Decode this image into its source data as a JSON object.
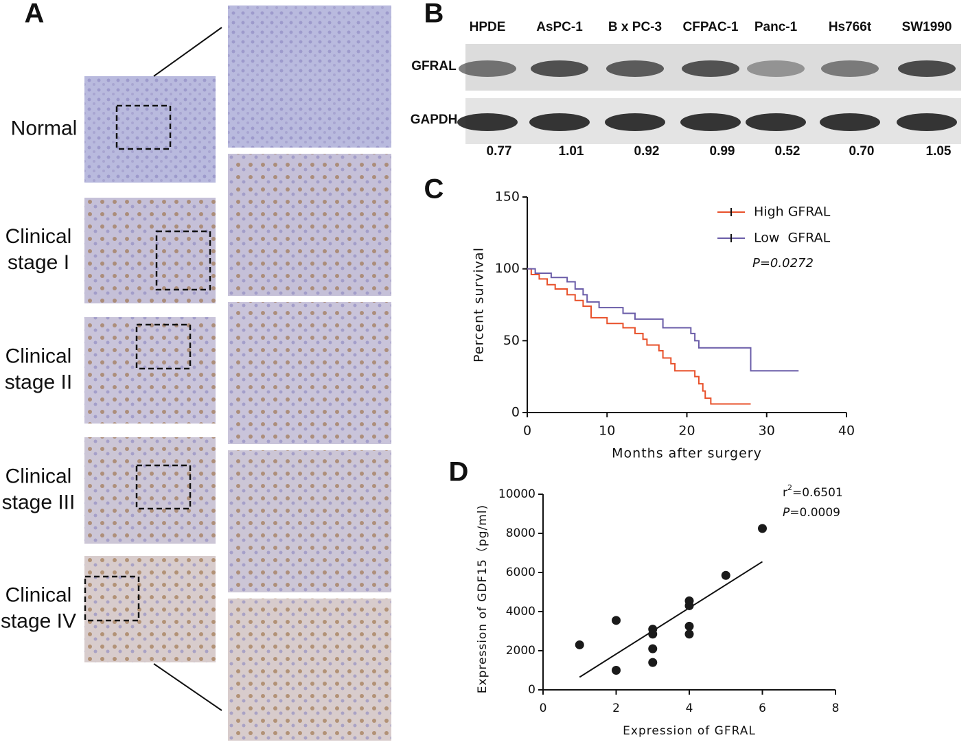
{
  "panel_a": {
    "label": "A",
    "rows": [
      [
        "Normal"
      ],
      [
        "Clinical",
        "stage I"
      ],
      [
        "Clinical",
        "stage II"
      ],
      [
        "Clinical",
        "stage III"
      ],
      [
        "Clinical",
        "stage IV"
      ]
    ]
  },
  "panel_b": {
    "label": "B",
    "lanes": [
      "HPDE",
      "AsPC-1",
      "B x PC-3",
      "CFPAC-1",
      "Panc-1",
      "Hs766t",
      "SW1990"
    ],
    "rows": [
      "GFRAL",
      "GAPDH"
    ],
    "values": [
      0.77,
      1.01,
      0.92,
      0.99,
      0.52,
      0.7,
      1.05
    ],
    "value_labels": [
      "0.77",
      "1.01",
      "0.92",
      "0.99",
      "0.52",
      "0.70",
      "1.05"
    ]
  },
  "chart_data": [
    {
      "type": "step",
      "label": "C",
      "xlabel": "Months after surgery",
      "ylabel": "Percent survival",
      "xlim": [
        0,
        40
      ],
      "xticks": [
        0,
        10,
        20,
        30,
        40
      ],
      "ylim": [
        0,
        150
      ],
      "yticks": [
        0,
        50,
        100,
        150
      ],
      "legend": "top-right",
      "annotation": "P=0.0272",
      "series": [
        {
          "name": "High GFRAL",
          "color": "#e8502a",
          "x": [
            0,
            0.5,
            1.5,
            2.5,
            3.5,
            5,
            6,
            7,
            8,
            10,
            12,
            13.5,
            14.5,
            15,
            16.5,
            17,
            18,
            18.5,
            21,
            21.5,
            22,
            22.3,
            23,
            28
          ],
          "values": [
            100,
            96,
            93,
            89,
            86,
            82,
            78,
            74,
            66,
            62,
            59,
            55,
            51,
            47,
            43,
            38,
            34,
            29,
            25,
            20,
            15,
            10,
            6,
            6
          ]
        },
        {
          "name": "Low  GFRAL",
          "color": "#6a5ca8",
          "x": [
            0,
            1,
            3,
            5,
            6,
            7,
            7.5,
            9,
            12,
            13.5,
            17,
            20.5,
            21,
            21.5,
            28,
            34
          ],
          "values": [
            100,
            97,
            94,
            91,
            86,
            82,
            77,
            73,
            69,
            65,
            59,
            55,
            50,
            45,
            29,
            29
          ]
        }
      ]
    },
    {
      "type": "scatter",
      "label": "D",
      "xlabel": "Expression of GFRAL",
      "ylabel": "Expression of GDF15（pg/ml)",
      "xlim": [
        0,
        8
      ],
      "xticks": [
        0,
        2,
        4,
        6,
        8
      ],
      "ylim": [
        0,
        10000
      ],
      "yticks": [
        0,
        2000,
        4000,
        6000,
        8000,
        10000
      ],
      "annotations": [
        [
          "r",
          "2",
          "=0.6501"
        ],
        [
          "P",
          "=0.0009"
        ]
      ],
      "x": [
        1,
        2,
        2,
        3,
        3,
        3,
        3,
        4,
        4,
        4,
        4,
        5,
        6
      ],
      "values": [
        2300,
        3550,
        1000,
        3100,
        2850,
        2100,
        1400,
        4550,
        4300,
        3250,
        2850,
        5850,
        8250
      ],
      "color": "#1a1a1a",
      "fit": {
        "x": [
          1,
          6
        ],
        "values": [
          650,
          6550
        ]
      }
    }
  ]
}
